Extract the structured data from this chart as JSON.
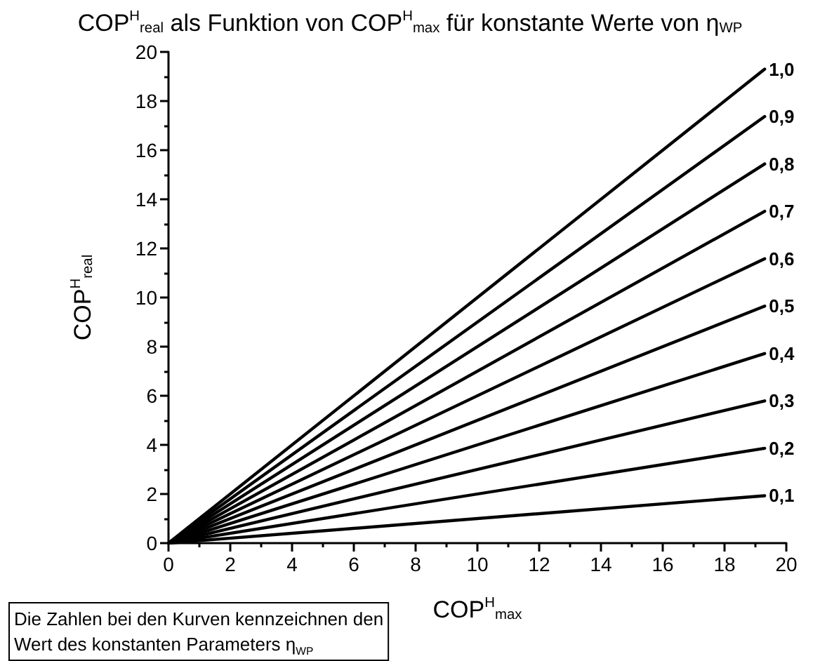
{
  "chart_data": {
    "type": "line",
    "title": "COP$^{H}$$_{real}$ als Funktion von COP$^{H}$$_{max}$ für konstante Werte von η$_{WP}$",
    "xlabel": "COP$^{H}$$_{max}$",
    "ylabel": "COP$^{H}$$_{real}$",
    "annotations": [
      "Die Zahlen bei den Kurven kennzeichnen den\nWert des konstanten Parameters η$_{WP}$"
    ],
    "xlim": [
      0,
      20
    ],
    "ylim": [
      0,
      20
    ],
    "xticks": [
      0,
      2,
      4,
      6,
      8,
      10,
      12,
      14,
      16,
      18,
      20
    ],
    "yticks": [
      0,
      2,
      4,
      6,
      8,
      10,
      12,
      14,
      16,
      18,
      20
    ],
    "grid": false,
    "legend": false,
    "marker": "none",
    "line_style": "solid",
    "x": [
      0,
      19.3
    ],
    "series": [
      {
        "name": "1,0",
        "color": "#000000",
        "values": [
          0,
          19.3
        ]
      },
      {
        "name": "0,9",
        "color": "#000000",
        "values": [
          0,
          17.37
        ]
      },
      {
        "name": "0,8",
        "color": "#000000",
        "values": [
          0,
          15.44
        ]
      },
      {
        "name": "0,7",
        "color": "#000000",
        "values": [
          0,
          13.51
        ]
      },
      {
        "name": "0,6",
        "color": "#000000",
        "values": [
          0,
          11.58
        ]
      },
      {
        "name": "0,5",
        "color": "#000000",
        "values": [
          0,
          9.65
        ]
      },
      {
        "name": "0,4",
        "color": "#000000",
        "values": [
          0,
          7.72
        ]
      },
      {
        "name": "0,3",
        "color": "#000000",
        "values": [
          0,
          5.79
        ]
      },
      {
        "name": "0,2",
        "color": "#000000",
        "values": [
          0,
          3.86
        ]
      },
      {
        "name": "0,1",
        "color": "#000000",
        "values": [
          0,
          1.93
        ]
      }
    ]
  }
}
